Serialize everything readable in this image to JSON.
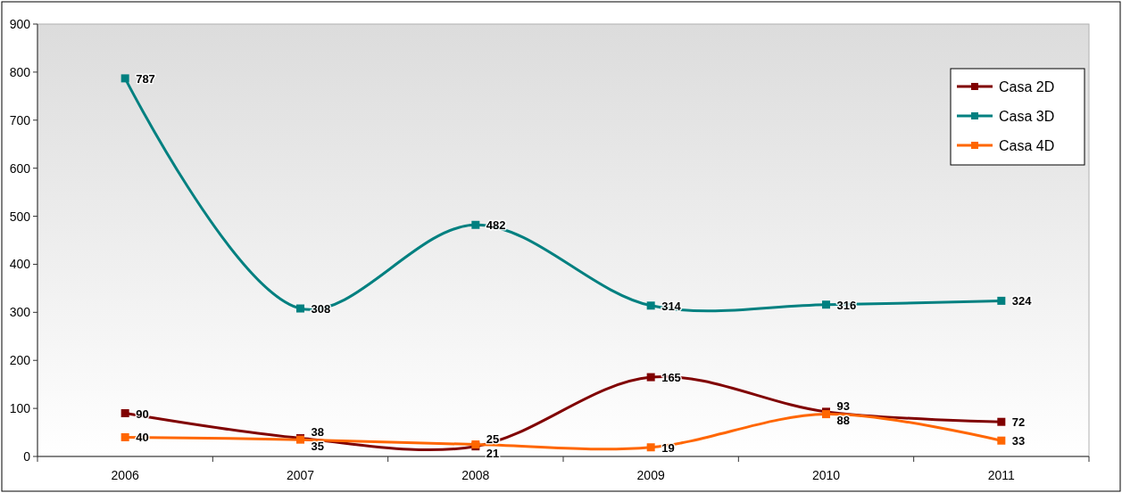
{
  "chart_data": {
    "type": "line",
    "categories": [
      "2006",
      "2007",
      "2008",
      "2009",
      "2010",
      "2011"
    ],
    "series": [
      {
        "name": "Casa 2D",
        "color": "#800000",
        "values": [
          90,
          38,
          21,
          165,
          93,
          72
        ]
      },
      {
        "name": "Casa 3D",
        "color": "#008080",
        "values": [
          787,
          308,
          482,
          314,
          316,
          324
        ]
      },
      {
        "name": "Casa 4D",
        "color": "#ff6600",
        "values": [
          40,
          35,
          25,
          19,
          88,
          33
        ]
      }
    ],
    "ylim": [
      0,
      900
    ],
    "yticks": [
      0,
      100,
      200,
      300,
      400,
      500,
      600,
      700,
      800,
      900
    ],
    "data_labels": true,
    "legend": "top right",
    "marker": "square",
    "grid": false,
    "line_style": "solid"
  }
}
